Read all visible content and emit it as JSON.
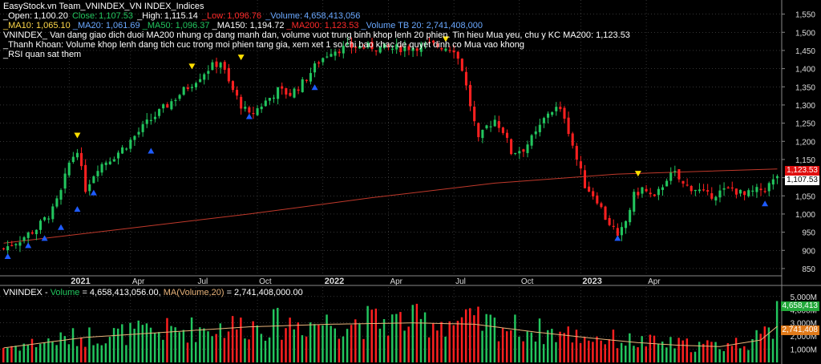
{
  "header": {
    "title": "EasyStock.vn Team_VNINDEX_VN INDEX_Indices",
    "ohlc": {
      "open_label": "_Open:",
      "open": "1,100.20",
      "close_label": "Close:",
      "close": "1,107.53",
      "high_label": "_High:",
      "high": "1,115.14",
      "low_label": "_Low:",
      "low": "1,096.76",
      "volume_label": "_Volume:",
      "volume": "4,658,413,056"
    },
    "ma": {
      "ma10": "_MA10: 1,065.10",
      "ma20": "_MA20: 1,061.69",
      "ma50": "_MA50: 1,096.37",
      "ma150": "_MA150: 1,194.72",
      "ma200": "_MA200: 1,123.53",
      "volma": "_Volume TB 20: 2,741,408,000"
    },
    "notes": [
      "VNINDEX_ Van dang giao dich duoi MA200 nhung cp dang manh dan, volume vuot trung binh khop lenh 20 phien. Tin hieu Mua yeu, chu y KC MA200:  1,123.53",
      "_Thanh Khoan: Volume khop lenh dang tich cuc trong moi phien tang gia, xem xet 1 so chi bao khac de quyet dinh co Mua vao khong",
      "_RSI quan sat them"
    ]
  },
  "volume_header": {
    "symbol": "VNINDEX -",
    "vol_label": "Volume",
    "vol_value": "= 4,658,413,056.00,",
    "ma_label": "MA(Volume,20)",
    "ma_value": "= 2,741,408,000.00"
  },
  "badges": {
    "ma200": "1,123.53",
    "close": "1,107.53",
    "volume": "4,658,413",
    "volume_ma": "2,741,408"
  },
  "chart_data": {
    "type": "candlestick",
    "x_labels": [
      "2021",
      "Apr",
      "Jul",
      "Oct",
      "2022",
      "Apr",
      "Jul",
      "Oct",
      "2023",
      "Apr"
    ],
    "y_ticks": [
      850,
      900,
      950,
      1000,
      1050,
      1100,
      1150,
      1200,
      1250,
      1300,
      1350,
      1400,
      1450,
      1500,
      1550
    ],
    "ylim": [
      830,
      1580
    ],
    "volume_ticks": [
      "1,000M",
      "2,000M",
      "3,000M",
      "4,000M",
      "5,000M"
    ],
    "volume_ylim": [
      0,
      5600
    ],
    "volume_unit": "millions of shares",
    "colors": {
      "up": "#22c55e",
      "down": "#ff2020",
      "ma200": "#c0392b",
      "vol_ma": "#e8b37a",
      "buy_marker": "#1e5bff",
      "sell_marker": "#ffe000",
      "grid": "#555555"
    },
    "grid": true,
    "close_path": [
      [
        0,
        905
      ],
      [
        4,
        930
      ],
      [
        8,
        960
      ],
      [
        12,
        1010
      ],
      [
        14,
        1060
      ],
      [
        16,
        1140
      ],
      [
        18,
        1180
      ],
      [
        19,
        1120
      ],
      [
        20,
        1070
      ],
      [
        23,
        1130
      ],
      [
        27,
        1160
      ],
      [
        30,
        1190
      ],
      [
        35,
        1250
      ],
      [
        40,
        1300
      ],
      [
        45,
        1350
      ],
      [
        50,
        1400
      ],
      [
        53,
        1420
      ],
      [
        55,
        1360
      ],
      [
        58,
        1300
      ],
      [
        60,
        1270
      ],
      [
        63,
        1300
      ],
      [
        67,
        1340
      ],
      [
        70,
        1330
      ],
      [
        73,
        1360
      ],
      [
        75,
        1390
      ],
      [
        77,
        1420
      ],
      [
        80,
        1450
      ],
      [
        85,
        1460
      ],
      [
        90,
        1460
      ],
      [
        95,
        1455
      ],
      [
        100,
        1460
      ],
      [
        105,
        1465
      ],
      [
        110,
        1455
      ],
      [
        112,
        1400
      ],
      [
        114,
        1300
      ],
      [
        116,
        1200
      ],
      [
        118,
        1240
      ],
      [
        120,
        1260
      ],
      [
        122,
        1230
      ],
      [
        124,
        1170
      ],
      [
        127,
        1180
      ],
      [
        130,
        1220
      ],
      [
        133,
        1280
      ],
      [
        135,
        1290
      ],
      [
        137,
        1270
      ],
      [
        140,
        1150
      ],
      [
        142,
        1080
      ],
      [
        145,
        1040
      ],
      [
        147,
        990
      ],
      [
        149,
        960
      ],
      [
        150,
        930
      ],
      [
        152,
        980
      ],
      [
        154,
        1050
      ],
      [
        156,
        1070
      ],
      [
        159,
        1040
      ],
      [
        162,
        1100
      ],
      [
        164,
        1110
      ],
      [
        166,
        1080
      ],
      [
        169,
        1070
      ],
      [
        172,
        1050
      ],
      [
        175,
        1060
      ],
      [
        178,
        1070
      ],
      [
        181,
        1050
      ],
      [
        183,
        1060
      ],
      [
        186,
        1070
      ],
      [
        188,
        1090
      ],
      [
        189,
        1107
      ]
    ],
    "ma200_path": [
      [
        0,
        920
      ],
      [
        30,
        960
      ],
      [
        60,
        1000
      ],
      [
        90,
        1045
      ],
      [
        120,
        1085
      ],
      [
        150,
        1110
      ],
      [
        189,
        1124
      ]
    ],
    "buy_markers": [
      [
        1,
        905
      ],
      [
        6,
        935
      ],
      [
        10,
        955
      ],
      [
        14,
        985
      ],
      [
        18,
        1035
      ],
      [
        22,
        1080
      ],
      [
        36,
        1195
      ],
      [
        60,
        1290
      ],
      [
        76,
        1370
      ],
      [
        150,
        955
      ],
      [
        186,
        1050
      ]
    ],
    "sell_markers": [
      [
        18,
        1195
      ],
      [
        46,
        1385
      ],
      [
        58,
        1410
      ],
      [
        108,
        1460
      ],
      [
        155,
        1090
      ]
    ],
    "volume_ma_path": [
      [
        0,
        1100
      ],
      [
        20,
        1900
      ],
      [
        40,
        2300
      ],
      [
        60,
        2700
      ],
      [
        80,
        2900
      ],
      [
        100,
        3000
      ],
      [
        115,
        2900
      ],
      [
        130,
        2300
      ],
      [
        145,
        1800
      ],
      [
        155,
        1500
      ],
      [
        165,
        1300
      ],
      [
        175,
        1200
      ],
      [
        185,
        1700
      ],
      [
        189,
        2741
      ]
    ]
  }
}
